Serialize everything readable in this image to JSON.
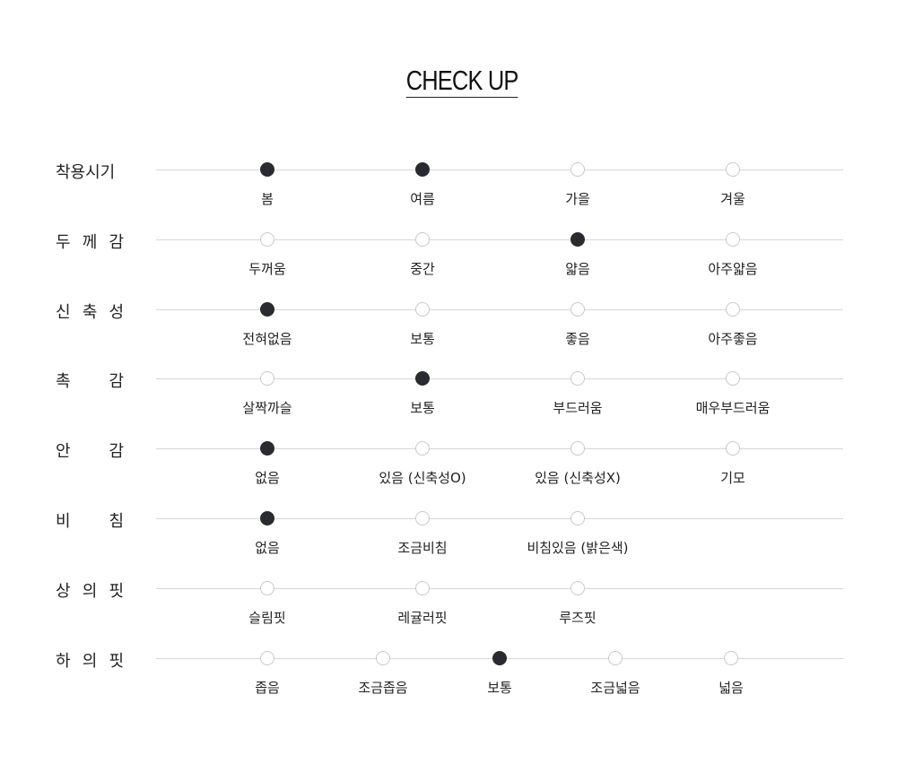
{
  "title": "CHECK UP",
  "colors": {
    "selected": "#2a2b30",
    "unselected_border": "#c8c8c8",
    "line": "#d6d6d6"
  },
  "rows": [
    {
      "label": "착용시기",
      "options": [
        {
          "label": "봄",
          "selected": true
        },
        {
          "label": "여름",
          "selected": true
        },
        {
          "label": "가을",
          "selected": false
        },
        {
          "label": "겨울",
          "selected": false
        }
      ]
    },
    {
      "label": "두 께 감",
      "options": [
        {
          "label": "두꺼움",
          "selected": false
        },
        {
          "label": "중간",
          "selected": false
        },
        {
          "label": "얇음",
          "selected": true
        },
        {
          "label": "아주얇음",
          "selected": false
        }
      ]
    },
    {
      "label": "신 축 성",
      "options": [
        {
          "label": "전혀없음",
          "selected": true
        },
        {
          "label": "보통",
          "selected": false
        },
        {
          "label": "좋음",
          "selected": false
        },
        {
          "label": "아주좋음",
          "selected": false
        }
      ]
    },
    {
      "label": "촉 감",
      "options": [
        {
          "label": "살짝까슬",
          "selected": false
        },
        {
          "label": "보통",
          "selected": true
        },
        {
          "label": "부드러움",
          "selected": false
        },
        {
          "label": "매우부드러움",
          "selected": false
        }
      ]
    },
    {
      "label": "안 감",
      "options": [
        {
          "label": "없음",
          "selected": true
        },
        {
          "label": "있음 (신축성O)",
          "selected": false
        },
        {
          "label": "있음 (신축성X)",
          "selected": false
        },
        {
          "label": "기모",
          "selected": false
        }
      ]
    },
    {
      "label": "비 침",
      "options": [
        {
          "label": "없음",
          "selected": true
        },
        {
          "label": "조금비침",
          "selected": false
        },
        {
          "label": "비침있음 (밝은색)",
          "selected": false
        }
      ]
    },
    {
      "label": "상 의 핏",
      "options": [
        {
          "label": "슬림핏",
          "selected": false
        },
        {
          "label": "레귤러핏",
          "selected": false
        },
        {
          "label": "루즈핏",
          "selected": false
        }
      ]
    },
    {
      "label": "하 의 핏",
      "columns": 5,
      "options": [
        {
          "label": "좁음",
          "selected": false
        },
        {
          "label": "조금좁음",
          "selected": false
        },
        {
          "label": "보통",
          "selected": true
        },
        {
          "label": "조금넓음",
          "selected": false
        },
        {
          "label": "넓음",
          "selected": false
        }
      ]
    }
  ]
}
